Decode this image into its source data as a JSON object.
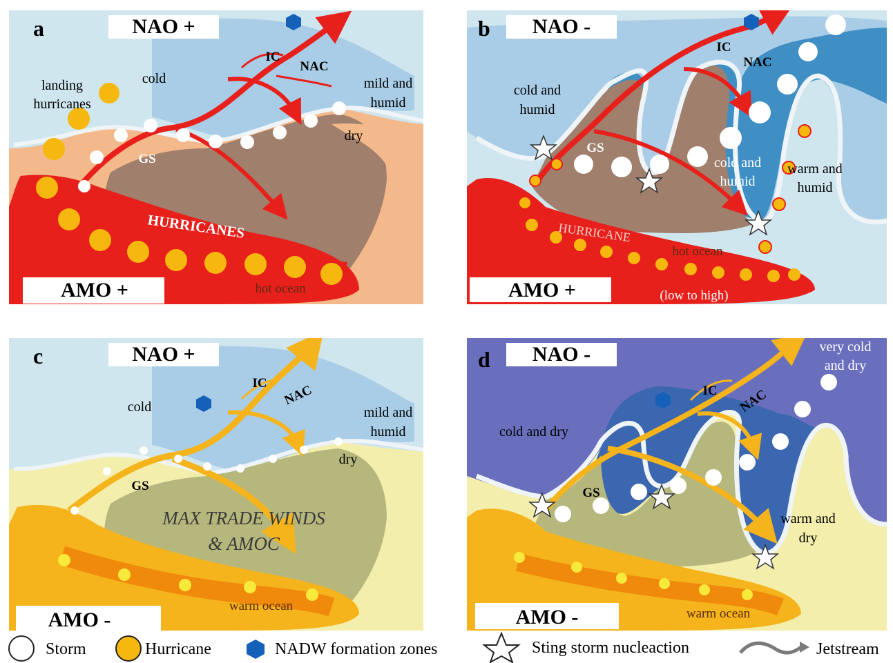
{
  "panels": {
    "a": {
      "letter": "a",
      "nao": "NAO +",
      "amo": "AMO +",
      "labels": {
        "landing": "landing",
        "hurricanes_land": "hurricanes",
        "cold": "cold",
        "ic": "IC",
        "nac": "NAC",
        "mild_and": "mild and",
        "humid": "humid",
        "dry": "dry",
        "gs": "GS",
        "hurricanes_band": "HURRICANES",
        "hot_ocean": "hot ocean"
      }
    },
    "b": {
      "letter": "b",
      "nao": "NAO -",
      "amo": "AMO +",
      "labels": {
        "cold_and": "cold and",
        "humid1": "humid",
        "ic": "IC",
        "nac": "NAC",
        "gs": "GS",
        "cold_and2": "cold and",
        "humid2": "humid",
        "warm_and": "warm and",
        "humid3": "humid",
        "hurricane_band": "HURRICANE",
        "hot_ocean": "hot ocean",
        "low_high": "(low to high)"
      }
    },
    "c": {
      "letter": "c",
      "nao": "NAO +",
      "amo": "AMO -",
      "labels": {
        "cold": "cold",
        "ic": "IC",
        "nac": "NAC",
        "mild_and": "mild and",
        "humid": "humid",
        "dry": "dry",
        "gs": "GS",
        "max_trade": "MAX TRADE WINDS",
        "amoc": "& AMOC",
        "warm_ocean": "warm ocean"
      }
    },
    "d": {
      "letter": "d",
      "nao": "NAO -",
      "amo": "AMO -",
      "labels": {
        "very_cold": "very cold",
        "and_dry": "and dry",
        "cold_and_dry": "cold and dry",
        "ic": "IC",
        "nac": "NAC",
        "gs": "GS",
        "warm_and": "warm and",
        "dry": "dry",
        "warm_ocean": "warm ocean"
      }
    }
  },
  "legend": {
    "storm": "Storm",
    "hurricane": "Hurricane",
    "nadw": "NADW formation zones",
    "sting": "Sting storm nucleaction",
    "jetstream": "Jetstream"
  },
  "colors": {
    "ocean_light": "#cfe6ee",
    "cold_air": "#a9cde6",
    "cold_air_deep": "#3f8fc4",
    "cold_air_violet": "#6a6fbd",
    "land_tan": "#f3b98a",
    "land_brown": "#a07f6d",
    "land_green": "#b6b77d",
    "land_yellow": "#f3eeab",
    "current_red": "#e8201c",
    "current_orange": "#f5b41c",
    "hurricane_yellow": "#f6b70f",
    "nadw_blue": "#1560b8"
  }
}
